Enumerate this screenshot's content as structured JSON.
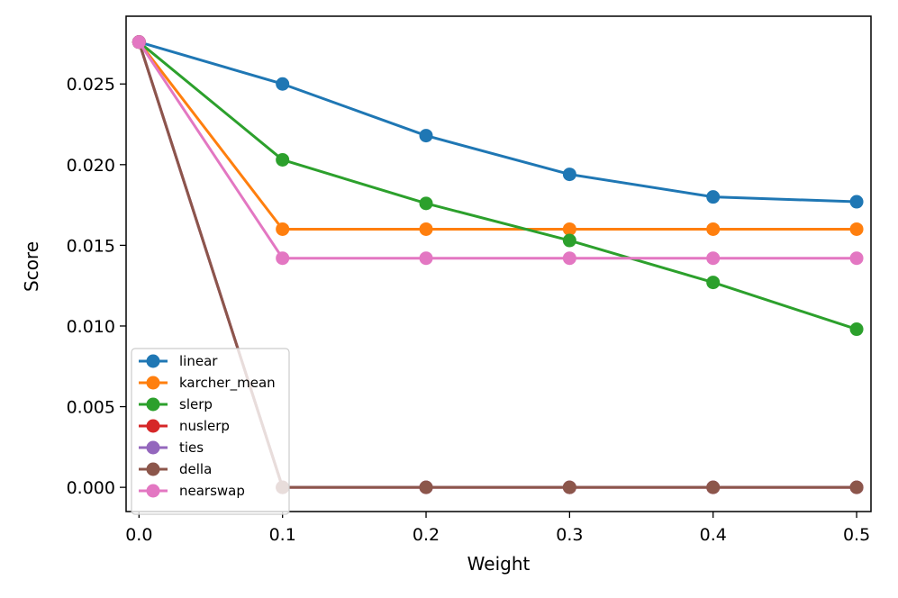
{
  "chart_data": {
    "type": "line",
    "title": "",
    "xlabel": "Weight",
    "ylabel": "Score",
    "x": [
      0.0,
      0.1,
      0.2,
      0.3,
      0.4,
      0.5
    ],
    "xlim": [
      -0.009,
      0.51
    ],
    "ylim": [
      -0.0015,
      0.0292
    ],
    "xticks": [
      0.0,
      0.1,
      0.2,
      0.3,
      0.4,
      0.5
    ],
    "xtick_labels": [
      "0.0",
      "0.1",
      "0.2",
      "0.3",
      "0.4",
      "0.5"
    ],
    "yticks": [
      0.0,
      0.005,
      0.01,
      0.015,
      0.02,
      0.025
    ],
    "ytick_labels": [
      "0.000",
      "0.005",
      "0.010",
      "0.015",
      "0.020",
      "0.025"
    ],
    "grid": false,
    "legend_position": "lower-left",
    "series": [
      {
        "name": "linear",
        "color": "#1f77b4",
        "values": [
          0.0276,
          0.025,
          0.0218,
          0.0194,
          0.018,
          0.0177
        ]
      },
      {
        "name": "karcher_mean",
        "color": "#ff7f0e",
        "values": [
          0.0276,
          0.016,
          0.016,
          0.016,
          0.016,
          0.016
        ]
      },
      {
        "name": "slerp",
        "color": "#2ca02c",
        "values": [
          0.0276,
          0.0203,
          0.0176,
          0.0153,
          0.0127,
          0.0098
        ]
      },
      {
        "name": "nuslerp",
        "color": "#d62728",
        "values": [
          0.0276,
          0.0,
          0.0,
          0.0,
          0.0,
          0.0
        ]
      },
      {
        "name": "ties",
        "color": "#9467bd",
        "values": [
          0.0276,
          0.0,
          0.0,
          0.0,
          0.0,
          0.0
        ]
      },
      {
        "name": "della",
        "color": "#8c564b",
        "values": [
          0.0276,
          0.0,
          0.0,
          0.0,
          0.0,
          0.0
        ]
      },
      {
        "name": "nearswap",
        "color": "#e377c2",
        "values": [
          0.0276,
          0.0142,
          0.0142,
          0.0142,
          0.0142,
          0.0142
        ]
      }
    ]
  }
}
